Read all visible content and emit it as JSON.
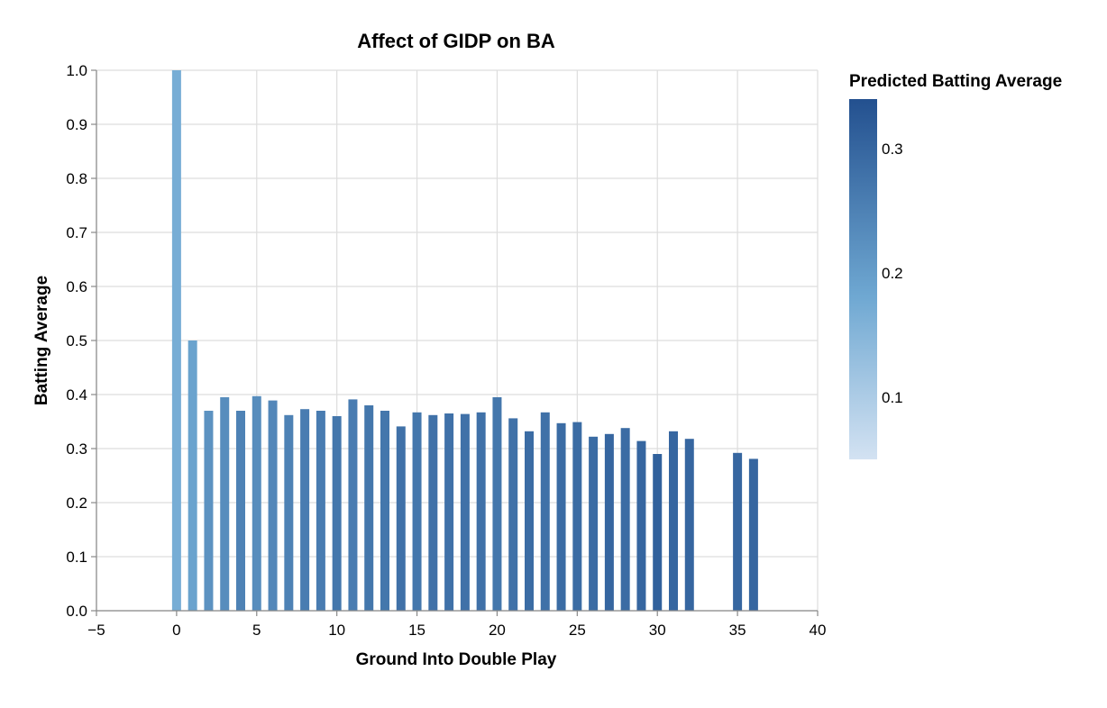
{
  "chart_data": {
    "type": "bar",
    "title": "Affect of GIDP on BA",
    "xlabel": "Ground Into Double Play",
    "ylabel": "Batting Average",
    "xlim": [
      -5,
      40
    ],
    "ylim": [
      0,
      1
    ],
    "x_ticks": [
      "−5",
      "0",
      "5",
      "10",
      "15",
      "20",
      "25",
      "30",
      "35",
      "40"
    ],
    "y_ticks": [
      "0.0",
      "0.1",
      "0.2",
      "0.3",
      "0.4",
      "0.5",
      "0.6",
      "0.7",
      "0.8",
      "0.9",
      "1.0"
    ],
    "grid": true,
    "x": [
      0,
      1,
      2,
      3,
      4,
      5,
      6,
      7,
      8,
      9,
      10,
      11,
      12,
      13,
      14,
      15,
      16,
      17,
      18,
      19,
      20,
      21,
      22,
      23,
      24,
      25,
      26,
      27,
      28,
      29,
      30,
      31,
      32,
      35,
      36
    ],
    "values": [
      1.0,
      0.5,
      0.37,
      0.395,
      0.37,
      0.397,
      0.389,
      0.362,
      0.373,
      0.37,
      0.36,
      0.391,
      0.38,
      0.37,
      0.341,
      0.367,
      0.362,
      0.365,
      0.364,
      0.367,
      0.395,
      0.356,
      0.332,
      0.367,
      0.347,
      0.349,
      0.322,
      0.327,
      0.338,
      0.314,
      0.29,
      0.332,
      0.318,
      0.292,
      0.281
    ],
    "predicted": [
      0.17,
      0.19,
      0.22,
      0.23,
      0.25,
      0.23,
      0.24,
      0.25,
      0.26,
      0.26,
      0.27,
      0.26,
      0.27,
      0.27,
      0.28,
      0.27,
      0.28,
      0.28,
      0.28,
      0.28,
      0.27,
      0.28,
      0.29,
      0.28,
      0.29,
      0.29,
      0.29,
      0.3,
      0.29,
      0.3,
      0.31,
      0.3,
      0.3,
      0.3,
      0.3
    ],
    "legend": {
      "title": "Predicted Batting Average",
      "position": "right",
      "domain": [
        0.05,
        0.34
      ],
      "ticks": [
        "0.1",
        "0.2",
        "0.3"
      ],
      "color_low": "#d3e2f2",
      "color_mid": "#6fa8d2",
      "color_high": "#23508f"
    }
  }
}
